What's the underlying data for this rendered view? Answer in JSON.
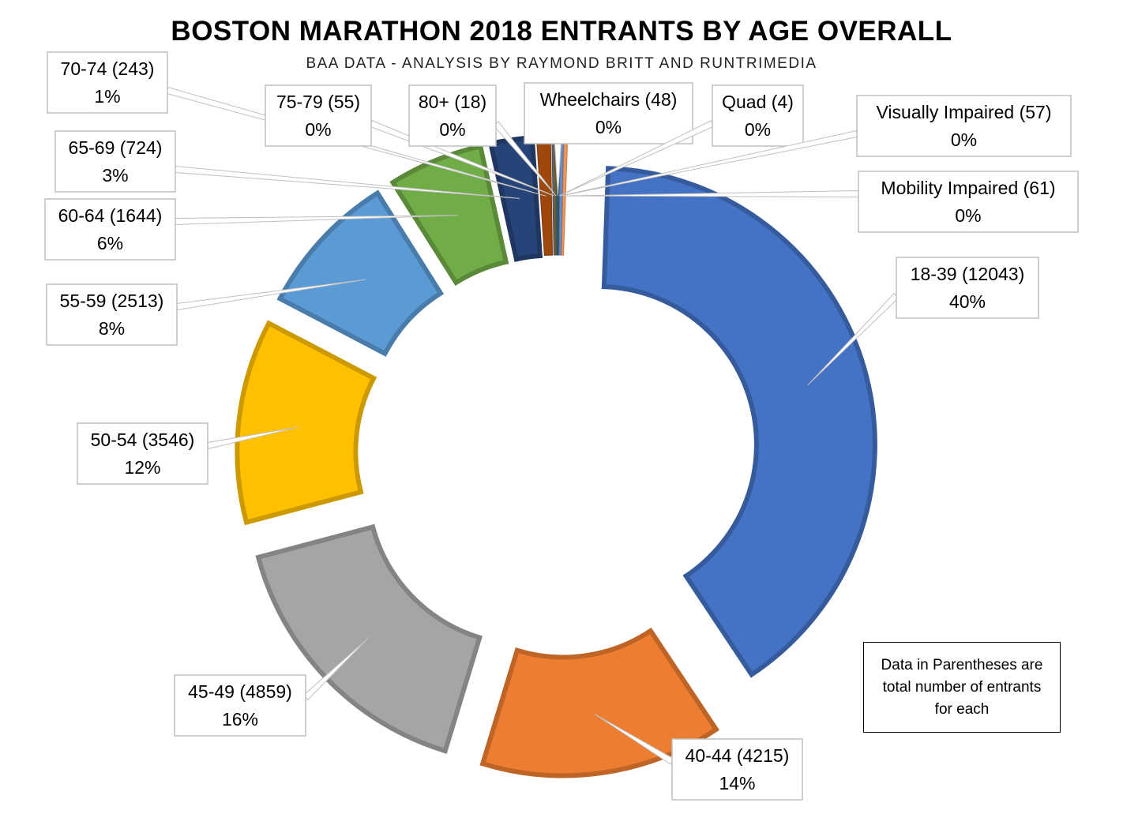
{
  "title": "BOSTON MARATHON 2018 ENTRANTS BY AGE OVERALL",
  "subtitle": "BAA DATA - ANALYSIS BY RAYMOND BRITT AND RUNTRIMEDIA",
  "note": "Data in Parentheses are total number of entrants for each",
  "chart_data": {
    "type": "pie",
    "variant": "exploded doughnut",
    "title": "BOSTON MARATHON 2018 ENTRANTS BY AGE OVERALL",
    "subtitle": "BAA DATA - ANALYSIS BY RAYMOND BRITT AND RUNTRIMEDIA",
    "slices": [
      {
        "category": "18-39",
        "value": 12043,
        "percent_label": "40%",
        "label": "18-39 (12043)",
        "color": "#4472C4"
      },
      {
        "category": "40-44",
        "value": 4215,
        "percent_label": "14%",
        "label": "40-44 (4215)",
        "color": "#ED7D31"
      },
      {
        "category": "45-49",
        "value": 4859,
        "percent_label": "16%",
        "label": "45-49 (4859)",
        "color": "#A5A5A5"
      },
      {
        "category": "50-54",
        "value": 3546,
        "percent_label": "12%",
        "label": "50-54 (3546)",
        "color": "#FFC000"
      },
      {
        "category": "55-59",
        "value": 2513,
        "percent_label": "8%",
        "label": "55-59 (2513)",
        "color": "#5B9BD5"
      },
      {
        "category": "60-64",
        "value": 1644,
        "percent_label": "6%",
        "label": "60-64 (1644)",
        "color": "#70AD47"
      },
      {
        "category": "65-69",
        "value": 724,
        "percent_label": "3%",
        "label": "65-69 (724)",
        "color": "#264478"
      },
      {
        "category": "70-74",
        "value": 243,
        "percent_label": "1%",
        "label": "70-74 (243)",
        "color": "#9E480E"
      },
      {
        "category": "75-79",
        "value": 55,
        "percent_label": "0%",
        "label": "75-79 (55)",
        "color": "#636363"
      },
      {
        "category": "80+",
        "value": 18,
        "percent_label": "0%",
        "label": "80+ (18)",
        "color": "#997300"
      },
      {
        "category": "Wheelchairs",
        "value": 48,
        "percent_label": "0%",
        "label": "Wheelchairs (48)",
        "color": "#255E91"
      },
      {
        "category": "Quad",
        "value": 4,
        "percent_label": "0%",
        "label": "Quad (4)",
        "color": "#43682B"
      },
      {
        "category": "Visually Impaired",
        "value": 57,
        "percent_label": "0%",
        "label": "Visually Impaired (57)",
        "color": "#698ED0"
      },
      {
        "category": "Mobility Impaired",
        "value": 61,
        "percent_label": "0%",
        "label": "Mobility Impaired (61)",
        "color": "#F1975A"
      }
    ]
  }
}
